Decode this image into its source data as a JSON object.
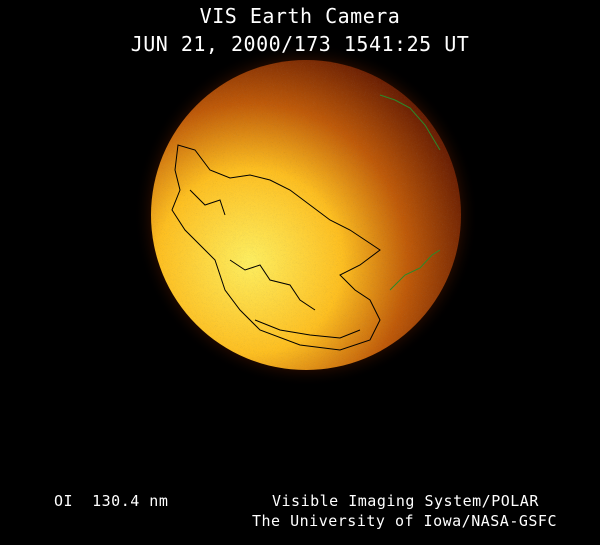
{
  "title": "VIS Earth Camera",
  "timestamp": "JUN 21, 2000/173 1541:25 UT",
  "wavelength": "OI  130.4 nm",
  "credit_line1": "Visible Imaging System/POLAR",
  "credit_line2": "The University of Iowa/NASA-GSFC",
  "colors": {
    "background": "#000000",
    "bright": "#ffe040",
    "dark": "#5a1a00",
    "coastline": "#000000",
    "aurora": "#2a8a2a"
  }
}
